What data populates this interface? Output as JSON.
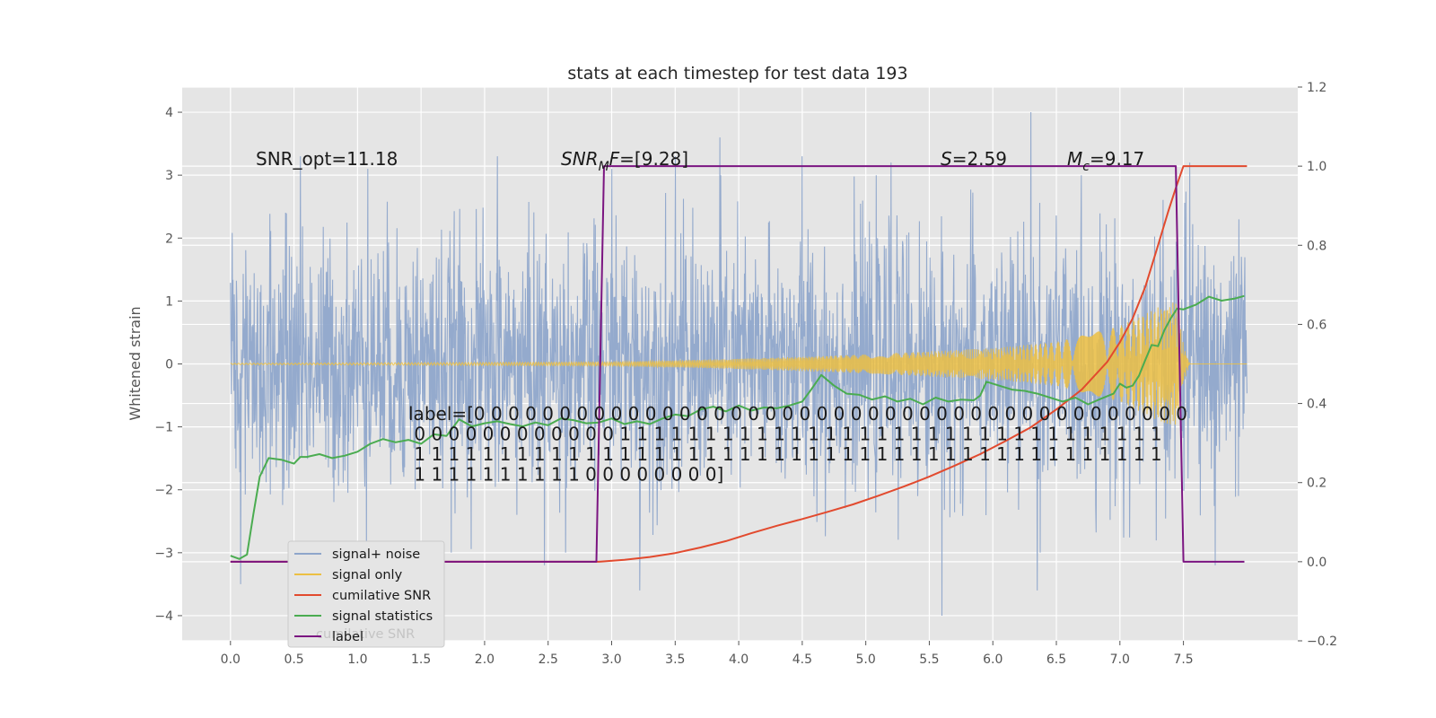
{
  "chart_data": {
    "type": "line",
    "title": "stats at each timestep for test data 193",
    "ylabel": "Whitened strain",
    "xlabel": "",
    "xlim": [
      -0.38,
      8.4
    ],
    "ylim": [
      -4.4,
      4.4
    ],
    "y2lim": [
      -0.2,
      1.2
    ],
    "grid": true,
    "xticks": [
      0.0,
      0.5,
      1.0,
      1.5,
      2.0,
      2.5,
      3.0,
      3.5,
      4.0,
      4.5,
      5.0,
      5.5,
      6.0,
      6.5,
      7.0,
      7.5
    ],
    "xtick_labels": [
      "0.0",
      "0.5",
      "1.0",
      "1.5",
      "2.0",
      "2.5",
      "3.0",
      "3.5",
      "4.0",
      "4.5",
      "5.0",
      "5.5",
      "6.0",
      "6.5",
      "7.0",
      "7.5"
    ],
    "yticks": [
      4,
      3,
      2,
      1,
      0,
      -1,
      -2,
      -3,
      -4
    ],
    "ytick_labels": [
      "4",
      "3",
      "2",
      "1",
      "0",
      "−1",
      "−2",
      "−3",
      "−4"
    ],
    "y2ticks": [
      1.2,
      1.0,
      0.8,
      0.6,
      0.4,
      0.2,
      0.0,
      -0.2
    ],
    "y2tick_labels": [
      "1.2",
      "1.0",
      "0.8",
      "0.6",
      "0.4",
      "0.2",
      "0.0",
      "−0.2"
    ],
    "colors": {
      "background": "#e5e5e5",
      "grid": "#ffffff",
      "noise": "#8fa6cb",
      "signal": "#ecc043",
      "cumulative_snr": "#e24a2e",
      "statistics": "#4aac50",
      "label": "#7b1581"
    },
    "annotations": {
      "snr_opt": "SNR_opt=11.18",
      "snr_mf_name": "SNR",
      "snr_mf_sub": "M",
      "snr_mf_rest": "F=[9.28]",
      "s_name": "S",
      "s_value": "=2.59",
      "mc_name": "M",
      "mc_sub": "c",
      "mc_value": "=9.17",
      "label_lines": [
        "label=[0 0 0 0 0 0 0 0 0 0 0 0 0 0 0 0 0 0 0 0 0 0 0 0 0 0 0 0 0 0 0 0 0 0 0 0 0 0 0 0 0 0",
        " 0 0 0 0 0 0 0 0 0 0 0 0 1 1 1 1 1 1 1 1 1 1 1 1 1 1 1 1 1 1 1 1 1 1 1 1 1 1 1 1 1 1 1 1",
        " 1 1 1 1 1 1 1 1 1 1 1 1 1 1 1 1 1 1 1 1 1 1 1 1 1 1 1 1 1 1 1 1 1 1 1 1 1 1 1 1 1 1 1 1",
        " 1 1 1 1 1 1 1 1 1 1 0 0 0 0 0 0 0 0]"
      ]
    },
    "legend": {
      "placement": "lower-left",
      "entries": [
        "signal+ noise",
        "signal only",
        "cumilative SNR",
        "signal statistics",
        "label"
      ],
      "ghost_text": "cumilative SNR"
    },
    "series": [
      {
        "name": "signal+ noise",
        "axis": "left",
        "style": "noise",
        "x_range": [
          0.0,
          8.0
        ],
        "spread": 1.0,
        "peaks": [
          [
            0.55,
            3.3
          ],
          [
            1.08,
            3.1
          ],
          [
            2.1,
            3.3
          ],
          [
            2.47,
            -3.2
          ],
          [
            3.0,
            3.1
          ],
          [
            3.22,
            -3.6
          ],
          [
            3.5,
            3.3
          ],
          [
            3.85,
            3.6
          ],
          [
            4.5,
            3.3
          ],
          [
            5.2,
            3.2
          ],
          [
            6.3,
            4.0
          ],
          [
            6.35,
            -3.6
          ],
          [
            7.55,
            3.2
          ],
          [
            7.75,
            -3.2
          ],
          [
            5.6,
            -4.0
          ],
          [
            0.08,
            -3.5
          ]
        ]
      },
      {
        "name": "signal only",
        "axis": "left",
        "style": "chirp",
        "x_range": [
          0.0,
          8.0
        ],
        "amplitude_points": [
          [
            0.0,
            0.01
          ],
          [
            3.0,
            0.03
          ],
          [
            4.0,
            0.08
          ],
          [
            5.0,
            0.15
          ],
          [
            6.0,
            0.25
          ],
          [
            6.5,
            0.35
          ],
          [
            7.0,
            0.6
          ],
          [
            7.3,
            0.9
          ],
          [
            7.45,
            1.0
          ],
          [
            7.5,
            0.3
          ],
          [
            7.55,
            0.0
          ],
          [
            8.0,
            0.0
          ]
        ]
      },
      {
        "name": "cumilative SNR",
        "axis": "right",
        "x": [
          0.0,
          2.9,
          3.1,
          3.3,
          3.5,
          3.7,
          3.9,
          4.1,
          4.3,
          4.5,
          4.7,
          4.9,
          5.1,
          5.3,
          5.5,
          5.7,
          5.9,
          6.1,
          6.3,
          6.5,
          6.7,
          6.9,
          7.0,
          7.1,
          7.2,
          7.3,
          7.38,
          7.44,
          7.5,
          8.0
        ],
        "y": [
          0.0,
          0.0,
          0.005,
          0.012,
          0.022,
          0.036,
          0.052,
          0.072,
          0.091,
          0.108,
          0.126,
          0.145,
          0.167,
          0.19,
          0.215,
          0.243,
          0.272,
          0.305,
          0.34,
          0.385,
          0.435,
          0.505,
          0.555,
          0.615,
          0.695,
          0.8,
          0.885,
          0.945,
          1.0,
          1.0
        ]
      },
      {
        "name": "signal statistics",
        "axis": "right",
        "x": [
          0.0,
          0.07,
          0.13,
          0.18,
          0.23,
          0.3,
          0.4,
          0.5,
          0.55,
          0.6,
          0.7,
          0.8,
          0.9,
          1.0,
          1.1,
          1.2,
          1.3,
          1.4,
          1.5,
          1.6,
          1.7,
          1.8,
          1.9,
          2.0,
          2.1,
          2.2,
          2.3,
          2.4,
          2.5,
          2.6,
          2.7,
          2.8,
          2.9,
          3.0,
          3.1,
          3.2,
          3.3,
          3.4,
          3.5,
          3.6,
          3.7,
          3.8,
          3.9,
          4.0,
          4.1,
          4.2,
          4.3,
          4.4,
          4.5,
          4.57,
          4.65,
          4.75,
          4.85,
          4.95,
          5.05,
          5.15,
          5.25,
          5.35,
          5.45,
          5.55,
          5.65,
          5.75,
          5.85,
          5.9,
          5.95,
          6.05,
          6.15,
          6.25,
          6.35,
          6.45,
          6.55,
          6.65,
          6.75,
          6.85,
          6.95,
          7.0,
          7.05,
          7.1,
          7.15,
          7.2,
          7.25,
          7.3,
          7.35,
          7.4,
          7.45,
          7.5,
          7.6,
          7.7,
          7.8,
          7.9,
          7.98
        ],
        "y": [
          0.015,
          0.007,
          0.018,
          0.12,
          0.215,
          0.262,
          0.258,
          0.248,
          0.265,
          0.265,
          0.272,
          0.262,
          0.268,
          0.278,
          0.298,
          0.31,
          0.302,
          0.308,
          0.298,
          0.322,
          0.318,
          0.36,
          0.342,
          0.35,
          0.355,
          0.348,
          0.342,
          0.352,
          0.345,
          0.362,
          0.358,
          0.35,
          0.352,
          0.362,
          0.348,
          0.355,
          0.348,
          0.362,
          0.372,
          0.368,
          0.385,
          0.392,
          0.38,
          0.395,
          0.382,
          0.39,
          0.388,
          0.395,
          0.405,
          0.435,
          0.472,
          0.445,
          0.425,
          0.422,
          0.41,
          0.418,
          0.405,
          0.412,
          0.398,
          0.415,
          0.405,
          0.41,
          0.408,
          0.42,
          0.455,
          0.445,
          0.435,
          0.432,
          0.425,
          0.415,
          0.405,
          0.415,
          0.398,
          0.412,
          0.425,
          0.45,
          0.44,
          0.445,
          0.47,
          0.51,
          0.548,
          0.545,
          0.585,
          0.615,
          0.64,
          0.638,
          0.65,
          0.67,
          0.66,
          0.665,
          0.672
        ]
      },
      {
        "name": "label",
        "axis": "right",
        "x": [
          0.0,
          2.88,
          2.94,
          7.44,
          7.5,
          7.98
        ],
        "y": [
          0.0,
          0.0,
          1.0,
          1.0,
          0.0,
          0.0
        ]
      }
    ]
  }
}
